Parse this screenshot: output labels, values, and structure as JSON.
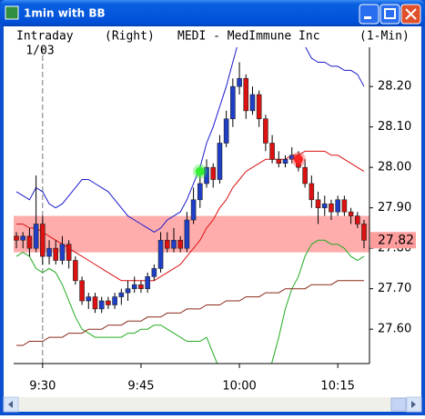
{
  "window": {
    "title": "1min with BB"
  },
  "chart_data": {
    "type": "candlestick",
    "header": [
      "Intraday",
      "(Right)",
      "MEDI - MedImmune Inc",
      "(1-Min)"
    ],
    "date": "1/03",
    "x": [
      "9:26",
      "9:27",
      "9:28",
      "9:29",
      "9:30",
      "9:31",
      "9:32",
      "9:33",
      "9:34",
      "9:35",
      "9:36",
      "9:37",
      "9:38",
      "9:39",
      "9:40",
      "9:41",
      "9:42",
      "9:43",
      "9:44",
      "9:45",
      "9:46",
      "9:47",
      "9:48",
      "9:49",
      "9:50",
      "9:51",
      "9:52",
      "9:53",
      "9:54",
      "9:55",
      "9:56",
      "9:57",
      "9:58",
      "9:59",
      "10:00",
      "10:01",
      "10:02",
      "10:03",
      "10:04",
      "10:05",
      "10:06",
      "10:07",
      "10:08",
      "10:09",
      "10:10",
      "10:11",
      "10:12",
      "10:13",
      "10:14",
      "10:15",
      "10:16",
      "10:17",
      "10:18",
      "10:19"
    ],
    "open": [
      27.83,
      27.82,
      27.83,
      27.8,
      27.86,
      27.78,
      27.8,
      27.77,
      27.81,
      27.77,
      27.72,
      27.67,
      27.68,
      27.65,
      27.67,
      27.66,
      27.68,
      27.69,
      27.7,
      27.71,
      27.7,
      27.73,
      27.75,
      27.82,
      27.8,
      27.82,
      27.8,
      27.87,
      27.92,
      27.96,
      28.0,
      27.97,
      28.06,
      28.12,
      28.2,
      28.22,
      28.14,
      28.18,
      28.12,
      28.06,
      28.02,
      28.01,
      28.02,
      28.03,
      28.0,
      27.96,
      27.92,
      27.9,
      27.91,
      27.89,
      27.92,
      27.89,
      27.88,
      27.86
    ],
    "high": [
      27.84,
      27.84,
      27.85,
      27.98,
      27.88,
      27.82,
      27.82,
      27.83,
      27.82,
      27.78,
      27.73,
      27.69,
      27.69,
      27.68,
      27.68,
      27.69,
      27.7,
      27.72,
      27.73,
      27.72,
      27.74,
      27.76,
      27.84,
      27.84,
      27.85,
      27.83,
      27.89,
      27.95,
      27.98,
      28.02,
      28.01,
      28.08,
      28.14,
      28.22,
      28.26,
      28.23,
      28.2,
      28.19,
      28.13,
      28.08,
      28.04,
      28.03,
      28.05,
      28.04,
      28.02,
      27.98,
      27.94,
      27.93,
      27.92,
      27.93,
      27.93,
      27.9,
      27.89,
      27.87
    ],
    "low": [
      27.8,
      27.8,
      27.78,
      27.79,
      27.76,
      27.76,
      27.76,
      27.76,
      27.75,
      27.71,
      27.66,
      27.65,
      27.64,
      27.64,
      27.65,
      27.65,
      27.66,
      27.67,
      27.69,
      27.69,
      27.69,
      27.72,
      27.74,
      27.79,
      27.79,
      27.79,
      27.79,
      27.86,
      27.9,
      27.95,
      27.95,
      27.96,
      28.05,
      28.1,
      28.18,
      28.12,
      28.13,
      28.1,
      28.04,
      28.01,
      28.0,
      28.0,
      28.01,
      27.99,
      27.95,
      27.9,
      27.86,
      27.88,
      27.87,
      27.88,
      27.88,
      27.86,
      27.85,
      27.8
    ],
    "close": [
      27.82,
      27.83,
      27.8,
      27.86,
      27.78,
      27.8,
      27.77,
      27.81,
      27.77,
      27.72,
      27.67,
      27.68,
      27.65,
      27.67,
      27.66,
      27.68,
      27.69,
      27.7,
      27.71,
      27.7,
      27.73,
      27.75,
      27.82,
      27.8,
      27.82,
      27.8,
      27.87,
      27.92,
      27.96,
      28.0,
      27.97,
      28.06,
      28.12,
      28.2,
      28.22,
      28.14,
      28.18,
      28.12,
      28.06,
      28.02,
      28.01,
      28.02,
      28.03,
      28.0,
      27.96,
      27.92,
      27.9,
      27.91,
      27.89,
      27.92,
      27.89,
      27.88,
      27.86,
      27.82
    ],
    "up_color": "#1f3fc8",
    "down_color": "#dd1111",
    "overlays": [
      {
        "color": "#1a1acc",
        "values": [
          27.94,
          27.93,
          27.92,
          27.95,
          27.94,
          27.91,
          27.9,
          27.91,
          27.93,
          27.95,
          27.97,
          27.97,
          27.96,
          27.95,
          27.94,
          27.92,
          27.9,
          27.88,
          27.87,
          27.86,
          27.85,
          27.84,
          27.85,
          27.87,
          27.88,
          27.89,
          27.92,
          27.96,
          28.0,
          28.06,
          28.1,
          28.15,
          28.2,
          28.26,
          28.32,
          28.36,
          28.39,
          28.41,
          28.42,
          28.42,
          28.41,
          28.39,
          28.36,
          28.33,
          28.3,
          28.27,
          28.26,
          28.26,
          28.25,
          28.25,
          28.24,
          28.24,
          28.23,
          28.2
        ]
      },
      {
        "color": "#dd1111",
        "values": [
          27.86,
          27.86,
          27.85,
          27.85,
          27.84,
          27.83,
          27.82,
          27.81,
          27.8,
          27.79,
          27.78,
          27.77,
          27.76,
          27.75,
          27.74,
          27.73,
          27.72,
          27.72,
          27.72,
          27.72,
          27.72,
          27.72,
          27.73,
          27.74,
          27.75,
          27.76,
          27.78,
          27.8,
          27.82,
          27.85,
          27.87,
          27.9,
          27.92,
          27.95,
          27.97,
          27.99,
          28.0,
          28.01,
          28.02,
          28.02,
          28.02,
          28.02,
          28.03,
          28.03,
          28.04,
          28.04,
          28.04,
          28.04,
          28.03,
          28.03,
          28.02,
          28.01,
          28.0,
          27.99
        ]
      },
      {
        "color": "#22aa22",
        "values": [
          27.78,
          27.79,
          27.78,
          27.75,
          27.74,
          27.75,
          27.74,
          27.71,
          27.67,
          27.63,
          27.6,
          27.59,
          27.58,
          27.58,
          27.58,
          27.58,
          27.58,
          27.59,
          27.59,
          27.6,
          27.6,
          27.61,
          27.61,
          27.6,
          27.59,
          27.58,
          27.57,
          27.57,
          27.57,
          27.58,
          27.54,
          27.5,
          27.46,
          27.42,
          27.4,
          27.4,
          27.41,
          27.43,
          27.47,
          27.52,
          27.58,
          27.65,
          27.7,
          27.73,
          27.78,
          27.81,
          27.82,
          27.82,
          27.81,
          27.81,
          27.8,
          27.78,
          27.77,
          27.78
        ]
      },
      {
        "color": "#8b2a1a",
        "values": [
          27.56,
          27.56,
          27.57,
          27.57,
          27.57,
          27.58,
          27.58,
          27.58,
          27.59,
          27.59,
          27.59,
          27.6,
          27.6,
          27.6,
          27.61,
          27.61,
          27.61,
          27.62,
          27.62,
          27.62,
          27.63,
          27.63,
          27.63,
          27.64,
          27.64,
          27.64,
          27.65,
          27.65,
          27.65,
          27.66,
          27.66,
          27.66,
          27.67,
          27.67,
          27.67,
          27.68,
          27.68,
          27.68,
          27.69,
          27.69,
          27.69,
          27.7,
          27.7,
          27.7,
          27.7,
          27.71,
          27.71,
          27.71,
          27.71,
          27.72,
          27.72,
          27.72,
          27.72,
          27.72
        ]
      }
    ],
    "highlight_zone": [
      27.79,
      27.88
    ],
    "zone_color": "#ff9d9d",
    "last_price": 27.82,
    "session_start": "9:30",
    "markers": [
      {
        "x": "9:54",
        "value": 27.99,
        "color": "#33ee33"
      },
      {
        "x": "10:09",
        "value": 28.02,
        "color": "#ff2222"
      }
    ],
    "ylim": [
      27.515,
      28.297
    ],
    "yticks": [
      {
        "value": 27.6,
        "label": "27.60"
      },
      {
        "value": 27.7,
        "label": "27.70"
      },
      {
        "value": 27.8,
        "label": "27.80"
      },
      {
        "value": 27.9,
        "label": "27.90"
      },
      {
        "value": 28,
        "label": "28.00"
      },
      {
        "value": 28.1,
        "label": "28.10"
      },
      {
        "value": 28.2,
        "label": "28.20"
      }
    ],
    "xticks": [
      "9:30",
      "9:45",
      "10:00",
      "10:15"
    ]
  }
}
